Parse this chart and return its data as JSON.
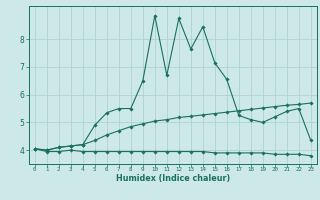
{
  "xlabel": "Humidex (Indice chaleur)",
  "background_color": "#cce8e8",
  "line_color": "#1a7060",
  "grid_color": "#aacece",
  "xlim": [
    -0.5,
    23.5
  ],
  "ylim": [
    3.5,
    9.2
  ],
  "yticks": [
    4,
    5,
    6,
    7,
    8
  ],
  "xticks": [
    0,
    1,
    2,
    3,
    4,
    5,
    6,
    7,
    8,
    9,
    10,
    11,
    12,
    13,
    14,
    15,
    16,
    17,
    18,
    19,
    20,
    21,
    22,
    23
  ],
  "line1_x": [
    0,
    1,
    2,
    3,
    4,
    5,
    6,
    7,
    8,
    9,
    10,
    11,
    12,
    13,
    14,
    15,
    16,
    17,
    18,
    19,
    20,
    21,
    22,
    23
  ],
  "line1_y": [
    4.05,
    3.95,
    3.95,
    4.0,
    3.95,
    3.95,
    3.95,
    3.95,
    3.95,
    3.95,
    3.95,
    3.95,
    3.95,
    3.95,
    3.95,
    3.9,
    3.9,
    3.9,
    3.9,
    3.9,
    3.85,
    3.85,
    3.85,
    3.8
  ],
  "line2_x": [
    0,
    1,
    2,
    3,
    4,
    5,
    6,
    7,
    8,
    9,
    10,
    11,
    12,
    13,
    14,
    15,
    16,
    17,
    18,
    19,
    20,
    21,
    22,
    23
  ],
  "line2_y": [
    4.05,
    4.0,
    4.1,
    4.15,
    4.2,
    4.35,
    4.55,
    4.7,
    4.85,
    4.95,
    5.05,
    5.1,
    5.18,
    5.22,
    5.27,
    5.32,
    5.37,
    5.42,
    5.47,
    5.52,
    5.57,
    5.62,
    5.65,
    5.7
  ],
  "line3_x": [
    0,
    1,
    2,
    3,
    4,
    5,
    6,
    7,
    8,
    9,
    10,
    11,
    12,
    13,
    14,
    15,
    16,
    17,
    18,
    19,
    20,
    21,
    22,
    23
  ],
  "line3_y": [
    4.05,
    4.0,
    4.1,
    4.15,
    4.2,
    4.9,
    5.35,
    5.5,
    5.5,
    6.5,
    8.85,
    6.7,
    8.75,
    7.65,
    8.45,
    7.15,
    6.55,
    5.25,
    5.1,
    5.0,
    5.2,
    5.4,
    5.5,
    4.35
  ]
}
